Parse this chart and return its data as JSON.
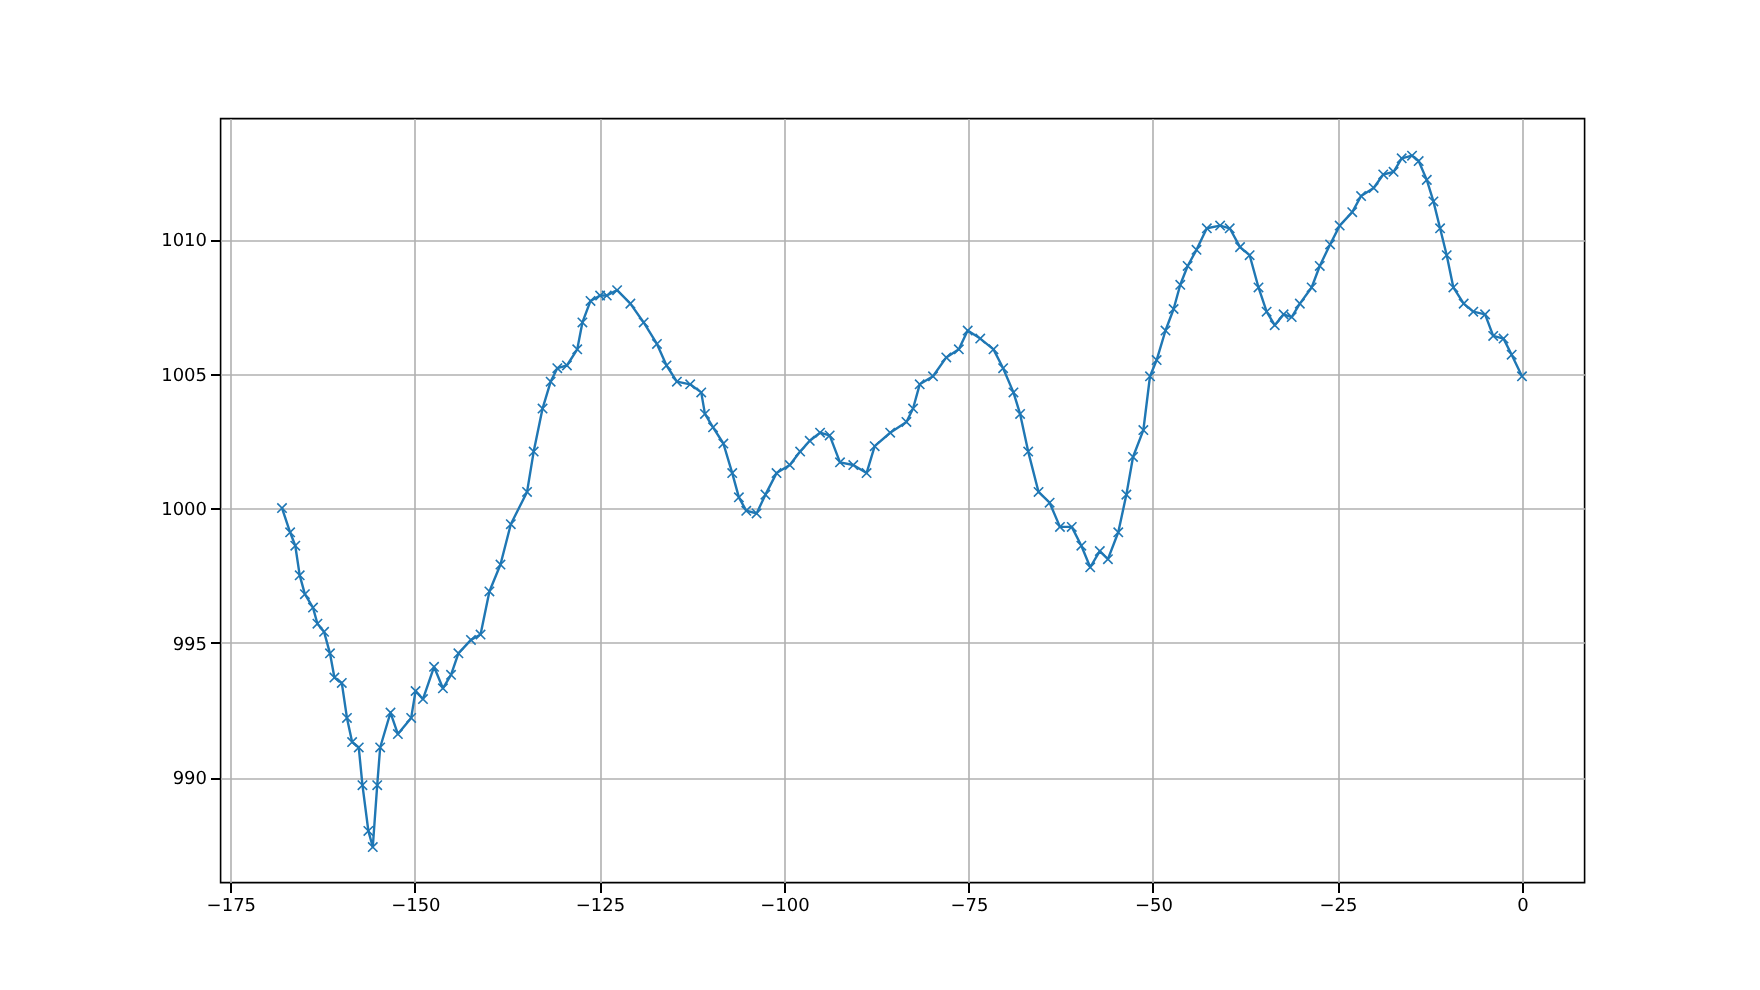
{
  "chart_data": {
    "type": "line",
    "marker": "cross",
    "grid": true,
    "xlim": [
      -176.4,
      8.4
    ],
    "ylim": [
      986.1,
      1014.5
    ],
    "xticks": [
      {
        "value": -175,
        "label": "−175"
      },
      {
        "value": -150,
        "label": "−150"
      },
      {
        "value": -125,
        "label": "−125"
      },
      {
        "value": -100,
        "label": "−100"
      },
      {
        "value": -75,
        "label": "−75"
      },
      {
        "value": -50,
        "label": "−50"
      },
      {
        "value": -25,
        "label": "−25"
      },
      0
    ],
    "yticks": [
      990,
      995,
      1000,
      1005,
      1010
    ],
    "series": [
      {
        "color": "#1f77b4",
        "x": [
          -168,
          -166.9,
          -166.2,
          -165.6,
          -164.9,
          -163.8,
          -163.2,
          -162.3,
          -161.5,
          -160.9,
          -159.9,
          -159.2,
          -158.5,
          -157.6,
          -157.1,
          -156.3,
          -155.7,
          -155.1,
          -154.7,
          -153.3,
          -152.3,
          -150.5,
          -149.9,
          -148.9,
          -147.4,
          -146.2,
          -145.1,
          -144.1,
          -142.4,
          -141.1,
          -139.9,
          -138.4,
          -137,
          -134.8,
          -133.9,
          -132.7,
          -131.6,
          -130.7,
          -129.4,
          -128,
          -127.3,
          -126.2,
          -124.9,
          -124,
          -122.6,
          -120.8,
          -119,
          -117.2,
          -115.9,
          -114.5,
          -112.7,
          -111.2,
          -110.7,
          -109.6,
          -108.2,
          -107,
          -106.1,
          -105.1,
          -103.7,
          -102.5,
          -101,
          -99.2,
          -97.8,
          -96.5,
          -95.1,
          -93.8,
          -92.4,
          -90.6,
          -88.8,
          -87.7,
          -85.6,
          -83.4,
          -82.5,
          -81.6,
          -79.8,
          -78,
          -76.3,
          -75.1,
          -73.4,
          -71.6,
          -70.3,
          -68.9,
          -68,
          -66.9,
          -65.5,
          -64,
          -62.6,
          -61,
          -59.7,
          -58.5,
          -57.2,
          -56.1,
          -54.7,
          -53.6,
          -52.7,
          -51.3,
          -50.4,
          -49.5,
          -48.3,
          -47.2,
          -46.3,
          -45.3,
          -44.1,
          -42.7,
          -40.9,
          -39.6,
          -38.2,
          -36.9,
          -35.7,
          -34.6,
          -33.5,
          -32.3,
          -31.2,
          -30.1,
          -28.5,
          -27.4,
          -26,
          -24.7,
          -23,
          -21.8,
          -20.1,
          -18.8,
          -17.4,
          -16.3,
          -14.9,
          -14,
          -12.9,
          -12,
          -11.1,
          -10.2,
          -9.3,
          -7.9,
          -6.6,
          -5,
          -3.9,
          -2.5,
          -1.4,
          0
        ],
        "values": [
          1000,
          999.1,
          998.6,
          997.5,
          996.8,
          996.3,
          995.7,
          995.4,
          994.6,
          993.7,
          993.5,
          992.2,
          991.3,
          991.1,
          989.7,
          988,
          987.4,
          989.7,
          991.1,
          992.4,
          991.6,
          992.2,
          993.2,
          992.9,
          994.1,
          993.3,
          993.8,
          994.6,
          995.1,
          995.3,
          996.9,
          997.9,
          999.4,
          1000.6,
          1002.1,
          1003.7,
          1004.7,
          1005.2,
          1005.3,
          1005.9,
          1006.9,
          1007.7,
          1007.9,
          1007.9,
          1008.1,
          1007.6,
          1006.9,
          1006.1,
          1005.3,
          1004.7,
          1004.6,
          1004.3,
          1003.5,
          1003,
          1002.4,
          1001.3,
          1000.4,
          999.9,
          999.8,
          1000.5,
          1001.3,
          1001.6,
          1002.1,
          1002.5,
          1002.8,
          1002.7,
          1001.7,
          1001.6,
          1001.3,
          1002.3,
          1002.8,
          1003.2,
          1003.7,
          1004.6,
          1004.9,
          1005.6,
          1005.9,
          1006.6,
          1006.3,
          1005.9,
          1005.2,
          1004.3,
          1003.5,
          1002.1,
          1000.6,
          1000.2,
          999.3,
          999.3,
          998.6,
          997.8,
          998.4,
          998.1,
          999.1,
          1000.5,
          1001.9,
          1002.9,
          1004.9,
          1005.5,
          1006.6,
          1007.4,
          1008.3,
          1009,
          1009.6,
          1010.4,
          1010.5,
          1010.4,
          1009.7,
          1009.4,
          1008.2,
          1007.3,
          1006.8,
          1007.2,
          1007.1,
          1007.6,
          1008.2,
          1009,
          1009.8,
          1010.5,
          1011,
          1011.6,
          1011.9,
          1012.4,
          1012.5,
          1013,
          1013.1,
          1012.9,
          1012.2,
          1011.4,
          1010.4,
          1009.4,
          1008.2,
          1007.6,
          1007.3,
          1007.2,
          1006.4,
          1006.3,
          1005.7,
          1004.9
        ]
      }
    ]
  }
}
